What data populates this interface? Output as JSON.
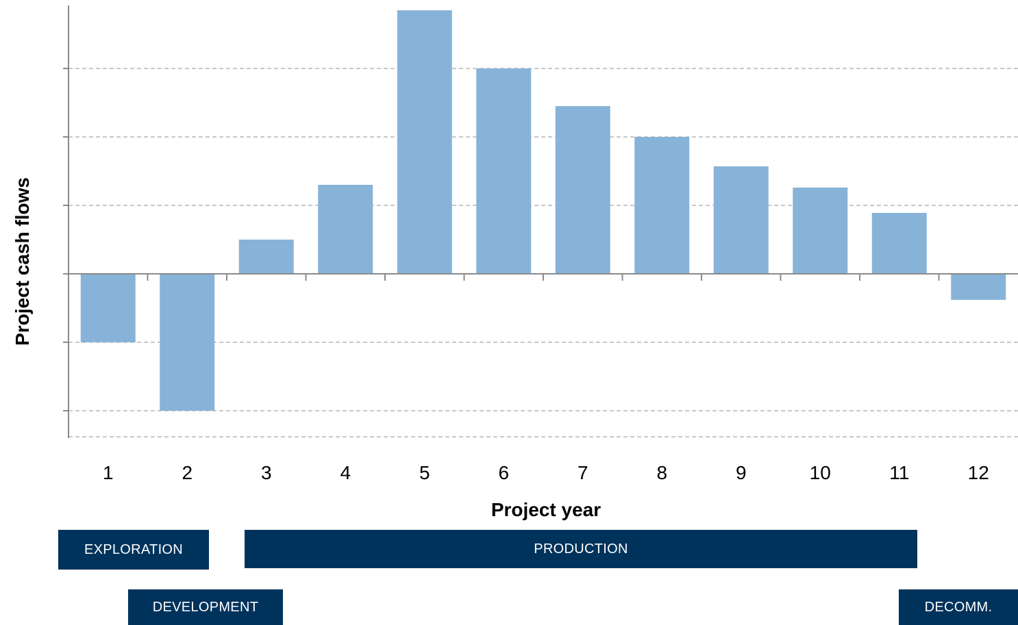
{
  "chart_data": {
    "type": "bar",
    "title": "",
    "xlabel": "Project year",
    "ylabel": "Project cash  flows",
    "categories": [
      "1",
      "2",
      "3",
      "4",
      "5",
      "6",
      "7",
      "8",
      "9",
      "10",
      "11",
      "12"
    ],
    "values": [
      -1.0,
      -2.0,
      0.5,
      1.3,
      3.85,
      3.0,
      2.45,
      2.0,
      1.57,
      1.26,
      0.89,
      -0.38
    ],
    "ylim": [
      -2.4,
      3.6
    ],
    "y_tick_labels_shown": false,
    "grid": "horizontal dashed",
    "bar_color": "#87b3d8"
  },
  "phases": [
    {
      "id": "exploration",
      "label": "EXPLORATION",
      "color": "#00335c"
    },
    {
      "id": "production",
      "label": "PRODUCTION",
      "color": "#00335c"
    },
    {
      "id": "development",
      "label": "DEVELOPMENT",
      "color": "#00335c"
    },
    {
      "id": "decommissioning",
      "label": "DECOMM.",
      "color": "#00335c"
    }
  ]
}
